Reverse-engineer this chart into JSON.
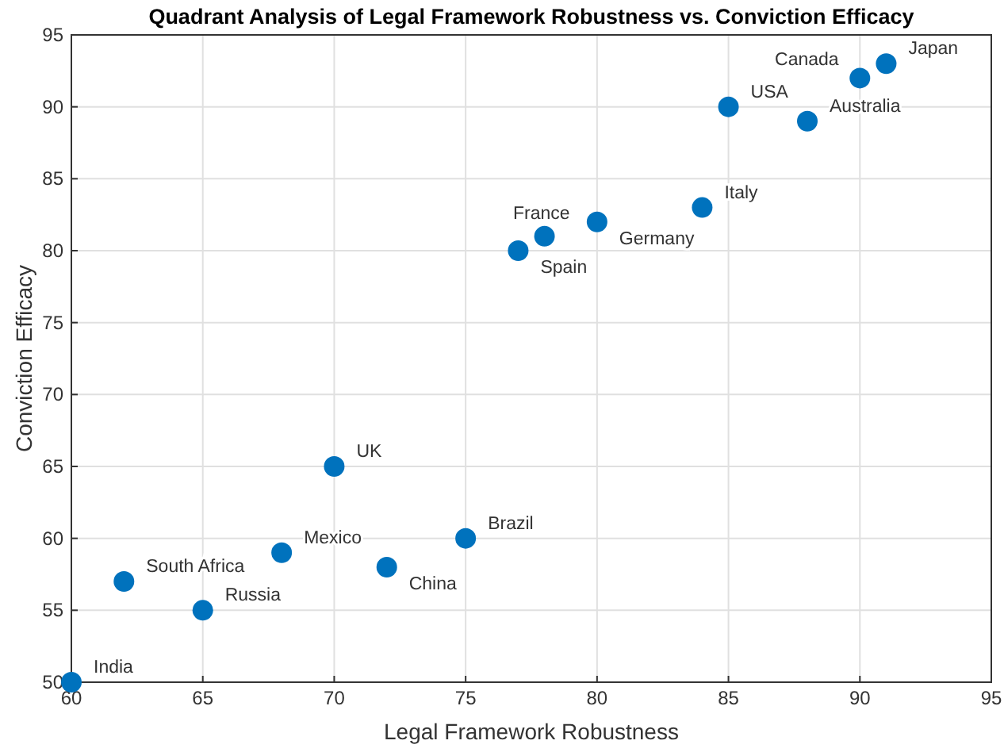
{
  "chart_data": {
    "type": "scatter",
    "title": "Quadrant Analysis of Legal Framework Robustness vs. Conviction Efficacy",
    "xlabel": "Legal Framework Robustness",
    "ylabel": "Conviction Efficacy",
    "xlim": [
      60,
      95
    ],
    "xticks": [
      60,
      65,
      70,
      75,
      80,
      85,
      90,
      95
    ],
    "ylim": [
      50,
      95
    ],
    "yticks": [
      50,
      55,
      60,
      65,
      70,
      75,
      80,
      85,
      90,
      95
    ],
    "grid": true,
    "marker": "circle",
    "series": [
      {
        "name": "India",
        "color": "#0072bd",
        "x": [
          60
        ],
        "values": [
          50
        ]
      },
      {
        "name": "South Africa",
        "color": "#0072bd",
        "x": [
          62
        ],
        "values": [
          57
        ]
      },
      {
        "name": "Russia",
        "color": "#0072bd",
        "x": [
          65
        ],
        "values": [
          55
        ]
      },
      {
        "name": "Mexico",
        "color": "#0072bd",
        "x": [
          68
        ],
        "values": [
          59
        ]
      },
      {
        "name": "UK",
        "color": "#0072bd",
        "x": [
          70
        ],
        "values": [
          65
        ]
      },
      {
        "name": "China",
        "color": "#0072bd",
        "x": [
          72
        ],
        "values": [
          58
        ]
      },
      {
        "name": "Brazil",
        "color": "#0072bd",
        "x": [
          75
        ],
        "values": [
          60
        ]
      },
      {
        "name": "Spain",
        "color": "#0072bd",
        "x": [
          77
        ],
        "values": [
          80
        ]
      },
      {
        "name": "France",
        "color": "#0072bd",
        "x": [
          78
        ],
        "values": [
          81
        ]
      },
      {
        "name": "Germany",
        "color": "#0072bd",
        "x": [
          80
        ],
        "values": [
          82
        ]
      },
      {
        "name": "Italy",
        "color": "#0072bd",
        "x": [
          84
        ],
        "values": [
          83
        ]
      },
      {
        "name": "USA",
        "color": "#0072bd",
        "x": [
          85
        ],
        "values": [
          90
        ]
      },
      {
        "name": "Australia",
        "color": "#0072bd",
        "x": [
          88
        ],
        "values": [
          89
        ]
      },
      {
        "name": "Canada",
        "color": "#0072bd",
        "x": [
          90
        ],
        "values": [
          92
        ]
      },
      {
        "name": "Japan",
        "color": "#0072bd",
        "x": [
          91
        ],
        "values": [
          93
        ]
      }
    ]
  }
}
